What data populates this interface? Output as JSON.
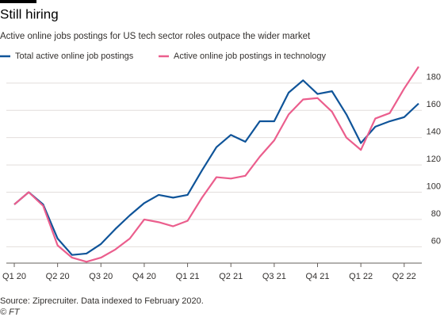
{
  "chart_data": {
    "type": "line",
    "title": "Still hiring",
    "subtitle": "Active online jobs postings for US tech sector roles outpace the wider market",
    "source": "Source: Ziprecruiter. Data indexed to February 2020.",
    "credit": "© FT",
    "categories": [
      "Q1 20",
      null,
      null,
      "Q2 20",
      null,
      null,
      "Q3 20",
      null,
      null,
      "Q4 20",
      null,
      null,
      "Q1 21",
      null,
      null,
      "Q2 21",
      null,
      null,
      "Q3 21",
      null,
      null,
      "Q4 21",
      null,
      null,
      "Q1 22",
      null,
      null,
      "Q2 22",
      null
    ],
    "series": [
      {
        "name": "Total active online job postings",
        "color": "#0f5499",
        "values": [
          91,
          100,
          91,
          66,
          54,
          55,
          62,
          73,
          83,
          92,
          98,
          96,
          98,
          116,
          133,
          142,
          137,
          152,
          152,
          173,
          182,
          172,
          174,
          157,
          136,
          148,
          152,
          155,
          165
        ]
      },
      {
        "name": "Active online job postings in technology",
        "color": "#eb5e8d",
        "values": [
          91,
          100,
          90,
          61,
          52,
          49,
          52,
          58,
          66,
          80,
          78,
          75,
          79,
          96,
          111,
          110,
          112,
          126,
          138,
          157,
          168,
          169,
          159,
          140,
          131,
          154,
          158,
          176,
          192
        ]
      }
    ],
    "ylim": [
      48,
      195
    ],
    "yticks": [
      60,
      80,
      100,
      120,
      140,
      160,
      180
    ],
    "grid": true
  }
}
